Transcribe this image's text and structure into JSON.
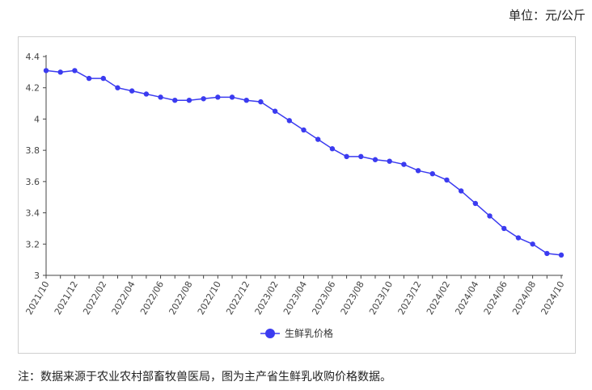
{
  "unit_label": "单位：元/公斤",
  "note": "注：数据来源于农业农村部畜牧兽医局，图为主产省生鲜乳收购价格数据。",
  "colors": {
    "series": "#3b3bf0",
    "axis": "#444444",
    "frame": "#cfcfcf"
  },
  "chart_data": {
    "type": "line",
    "title": "",
    "xlabel": "",
    "ylabel": "",
    "ylim": [
      3,
      4.4
    ],
    "yticks": [
      3,
      3.2,
      3.4,
      3.6,
      3.8,
      4,
      4.2,
      4.4
    ],
    "ytick_labels": [
      "3",
      "3.2",
      "3.4",
      "3.6",
      "3.8",
      "4",
      "4.2",
      "4.4"
    ],
    "grid": false,
    "legend_position": "bottom",
    "x_tick_labels": [
      "2021/10",
      "2021/12",
      "2022/02",
      "2022/04",
      "2022/06",
      "2022/08",
      "2022/10",
      "2022/12",
      "2023/02",
      "2023/04",
      "2023/06",
      "2023/08",
      "2023/10",
      "2023/12",
      "2024/02",
      "2024/04",
      "2024/06",
      "2024/08",
      "2024/10"
    ],
    "x": [
      "2021/10",
      "2021/11",
      "2021/12",
      "2022/01",
      "2022/02",
      "2022/03",
      "2022/04",
      "2022/05",
      "2022/06",
      "2022/07",
      "2022/08",
      "2022/09",
      "2022/10",
      "2022/11",
      "2022/12",
      "2023/01",
      "2023/02",
      "2023/03",
      "2023/04",
      "2023/05",
      "2023/06",
      "2023/07",
      "2023/08",
      "2023/09",
      "2023/10",
      "2023/11",
      "2023/12",
      "2024/01",
      "2024/02",
      "2024/03",
      "2024/04",
      "2024/05",
      "2024/06",
      "2024/07",
      "2024/08",
      "2024/09",
      "2024/10"
    ],
    "series": [
      {
        "name": "生鲜乳价格",
        "values": [
          4.31,
          4.3,
          4.31,
          4.26,
          4.26,
          4.2,
          4.18,
          4.16,
          4.14,
          4.12,
          4.12,
          4.13,
          4.14,
          4.14,
          4.12,
          4.11,
          4.05,
          3.99,
          3.93,
          3.87,
          3.81,
          3.76,
          3.76,
          3.74,
          3.73,
          3.71,
          3.67,
          3.65,
          3.61,
          3.54,
          3.46,
          3.38,
          3.3,
          3.24,
          3.2,
          3.14,
          3.13
        ]
      }
    ]
  }
}
